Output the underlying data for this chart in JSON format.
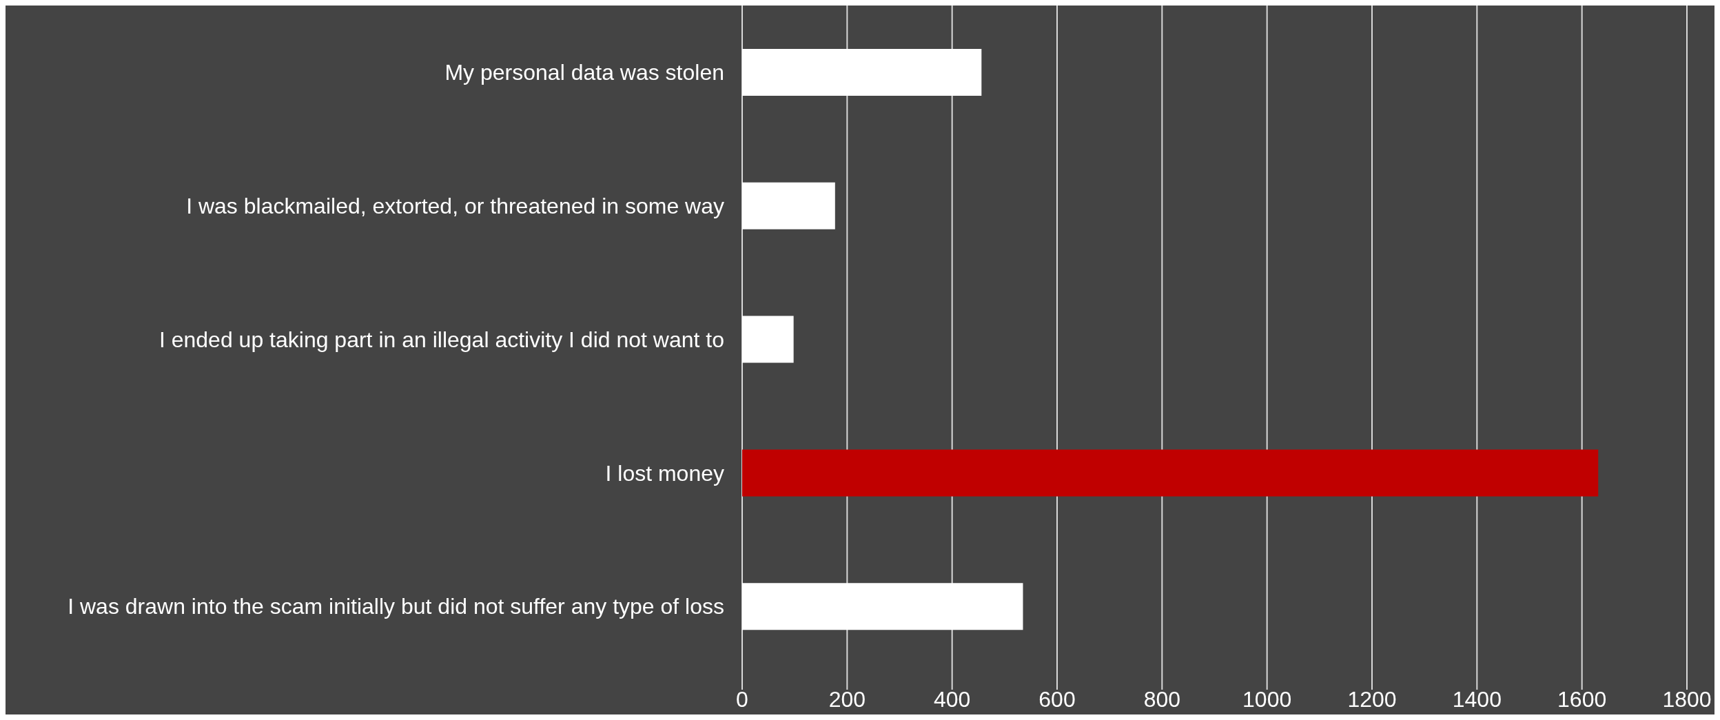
{
  "chart_data": {
    "type": "bar",
    "orientation": "horizontal",
    "categories": [
      "My personal data was stolen",
      "I was blackmailed, extorted, or threatened in some way",
      "I ended up taking part in an illegal activity I did not want to",
      "I lost money",
      "I was drawn into the scam initially but did not suffer any type of loss"
    ],
    "values": [
      456,
      177,
      98,
      1631,
      535
    ],
    "colors": [
      "#ffffff",
      "#ffffff",
      "#ffffff",
      "#c00000",
      "#ffffff"
    ],
    "xlim": [
      0,
      1800
    ],
    "xticks": [
      0,
      200,
      400,
      600,
      800,
      1000,
      1200,
      1400,
      1600,
      1800
    ],
    "grid": "x"
  }
}
